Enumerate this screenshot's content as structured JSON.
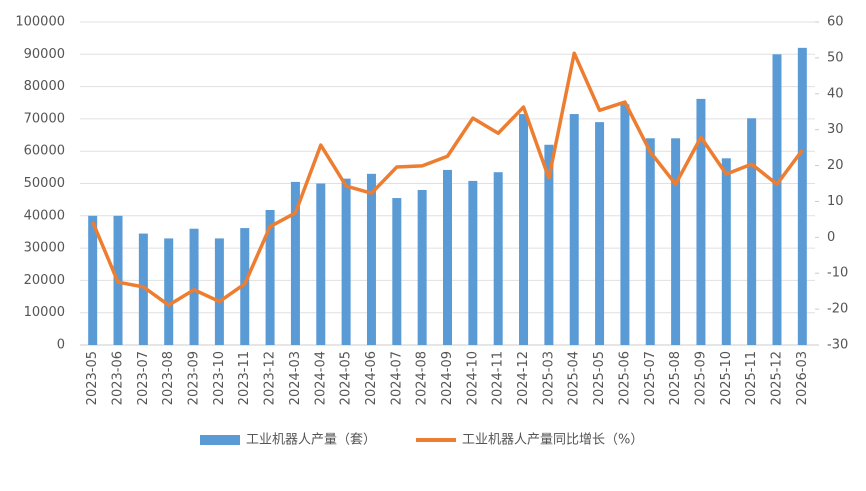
{
  "chart_data": {
    "type": "bar_line",
    "categories": [
      "2023-05",
      "2023-06",
      "2023-07",
      "2023-08",
      "2023-09",
      "2023-10",
      "2023-11",
      "2023-12",
      "2024-03",
      "2024-04",
      "2024-05",
      "2024-06",
      "2024-07",
      "2024-08",
      "2024-09",
      "2024-10",
      "2024-11",
      "2024-12",
      "2025-03",
      "2025-04",
      "2025-05",
      "2025-06",
      "2025-07",
      "2025-08",
      "2025-09",
      "2025-10",
      "2025-11",
      "2025-12",
      "2026-03"
    ],
    "series": [
      {
        "name": "工业机器人产量（套）",
        "color": "#5b9bd5",
        "type": "bar",
        "values": [
          40000,
          40000,
          34500,
          33000,
          36000,
          33000,
          36200,
          41800,
          50500,
          50000,
          51500,
          53000,
          45500,
          48000,
          54200,
          50800,
          53500,
          71500,
          62000,
          71500,
          69000,
          74500,
          64000,
          64000,
          76200,
          57800,
          70200,
          90000,
          92000
        ]
      },
      {
        "name": "工业机器人产量同比增长（%）",
        "color": "#ed7d31",
        "type": "line",
        "axis": "y2",
        "values": [
          4.3,
          -12.5,
          -13.8,
          -18.9,
          -14.6,
          -17.9,
          -13,
          3,
          6.8,
          25.7,
          14.3,
          12.3,
          19.6,
          19.9,
          22.6,
          33.2,
          29,
          36.3,
          16.5,
          51.3,
          35.4,
          37.7,
          23.8,
          14.8,
          27.9,
          17.6,
          20.4,
          14.8,
          24.3
        ]
      }
    ],
    "ylim": [
      0,
      100000
    ],
    "yticks": [
      0,
      10000,
      20000,
      30000,
      40000,
      50000,
      60000,
      70000,
      80000,
      90000,
      100000
    ],
    "y2lim": [
      -30,
      60
    ],
    "y2ticks": [
      -30,
      -20,
      -10,
      0,
      10,
      20,
      30,
      40,
      50,
      60
    ],
    "grid": true
  }
}
